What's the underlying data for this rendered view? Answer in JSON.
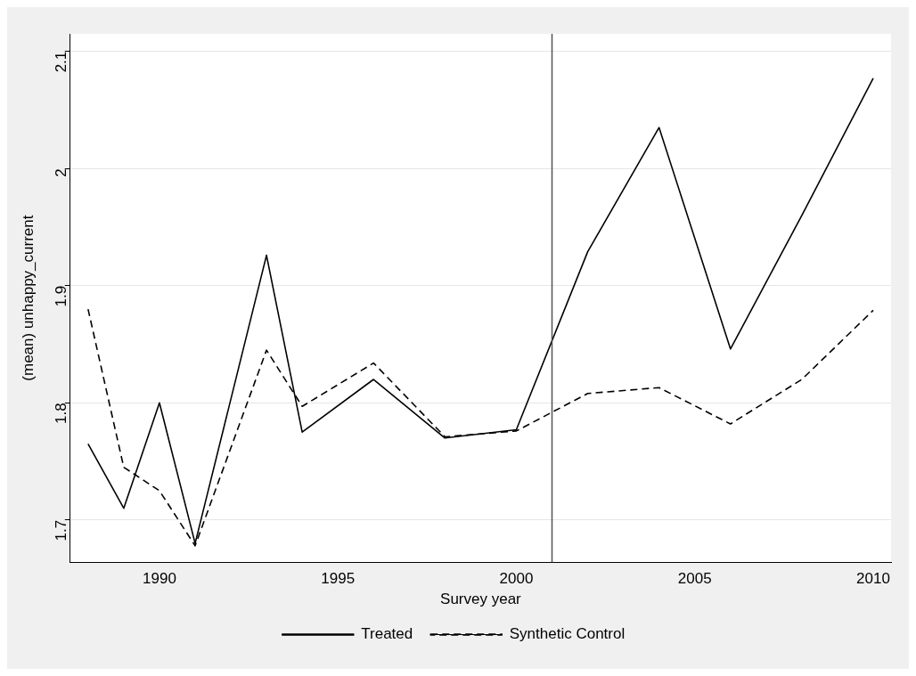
{
  "chart_data": {
    "type": "line",
    "xlabel": "Survey year",
    "ylabel": "(mean) unhappy_current",
    "x": [
      1988,
      1989,
      1990,
      1991,
      1993,
      1994,
      1996,
      1998,
      2000,
      2002,
      2004,
      2006,
      2008,
      2010
    ],
    "series": [
      {
        "name": "Treated",
        "color": "#000000",
        "line_style": "solid",
        "values": [
          1.765,
          1.71,
          1.8,
          1.68,
          1.926,
          1.775,
          1.82,
          1.77,
          1.777,
          1.929,
          2.035,
          1.846,
          1.96,
          2.077
        ]
      },
      {
        "name": "Synthetic Control",
        "color": "#000000",
        "line_style": "dashed",
        "values": [
          1.88,
          1.745,
          1.725,
          1.678,
          1.845,
          1.797,
          1.834,
          1.771,
          1.776,
          1.808,
          1.813,
          1.782,
          1.82,
          1.879
        ]
      }
    ],
    "xlim": [
      1987.5,
      2010.5
    ],
    "xticks": [
      1990,
      1995,
      2000,
      2005,
      2010
    ],
    "ylim": [
      1.664,
      2.115
    ],
    "yticks": [
      1.7,
      1.8,
      1.9,
      2,
      2.1
    ],
    "ref_lines": [
      {
        "axis": "x",
        "value": 2001,
        "color": "#555555"
      }
    ],
    "grid": "y",
    "legend": "bottom",
    "marker": "none"
  }
}
